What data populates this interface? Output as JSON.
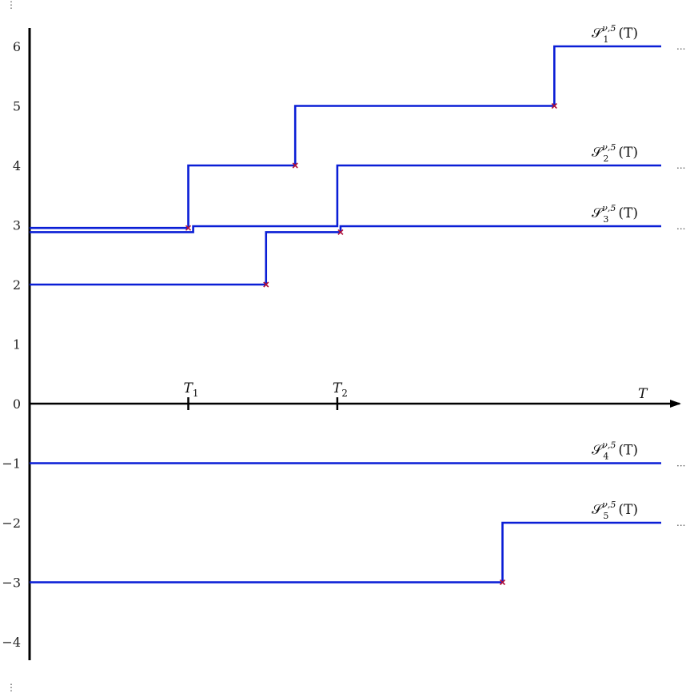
{
  "chart_data": {
    "type": "line",
    "step": true,
    "x_axis_label": "T",
    "y_ticks": [
      "6",
      "5",
      "4",
      "3",
      "2",
      "1",
      "0",
      "−1",
      "−2",
      "−3",
      "−4"
    ],
    "x_markers": [
      {
        "name": "T",
        "sub": "1",
        "x": 4.9
      },
      {
        "name": "T",
        "sub": "2",
        "x": 9.5
      }
    ],
    "xlim": [
      0,
      20
    ],
    "ylim": [
      -4.5,
      6.5
    ],
    "colors": {
      "line": "#0a1ed6",
      "jump_marker": "#b0103a",
      "axis": "#000000"
    },
    "series": [
      {
        "label_main": "𝒮",
        "label_index": "1",
        "label_super": "ν,5",
        "label_arg": "(T)",
        "ellipsis": "...",
        "points": [
          [
            0,
            2.95
          ],
          [
            4.9,
            2.95
          ],
          [
            4.9,
            4
          ],
          [
            8.2,
            4
          ],
          [
            8.2,
            5
          ],
          [
            16.2,
            5
          ],
          [
            16.2,
            6
          ],
          [
            19.5,
            6
          ]
        ],
        "jumps": [
          [
            4.9,
            2.95
          ],
          [
            8.2,
            4
          ],
          [
            16.2,
            5
          ]
        ]
      },
      {
        "label_main": "𝒮",
        "label_index": "2",
        "label_super": "ν,5",
        "label_arg": "(T)",
        "ellipsis": "...",
        "points": [
          [
            0,
            2.88
          ],
          [
            5.05,
            2.88
          ],
          [
            5.05,
            2.98
          ],
          [
            9.5,
            2.98
          ],
          [
            9.5,
            4
          ],
          [
            19.5,
            4
          ]
        ],
        "jumps": []
      },
      {
        "label_main": "𝒮",
        "label_index": "3",
        "label_super": "ν,5",
        "label_arg": "(T)",
        "ellipsis": "...",
        "points": [
          [
            0,
            2
          ],
          [
            7.3,
            2
          ],
          [
            7.3,
            2.88
          ],
          [
            9.6,
            2.88
          ],
          [
            9.6,
            2.98
          ],
          [
            19.5,
            2.98
          ]
        ],
        "jumps": [
          [
            7.3,
            2
          ],
          [
            9.6,
            2.88
          ]
        ]
      },
      {
        "label_main": "𝒮",
        "label_index": "4",
        "label_super": "ν,5",
        "label_arg": "(T)",
        "ellipsis": "...",
        "points": [
          [
            0,
            -1
          ],
          [
            19.5,
            -1
          ]
        ],
        "jumps": []
      },
      {
        "label_main": "𝒮",
        "label_index": "5",
        "label_super": "ν,5",
        "label_arg": "(T)",
        "ellipsis": "...",
        "points": [
          [
            0,
            -3
          ],
          [
            14.6,
            -3
          ],
          [
            14.6,
            -2
          ],
          [
            19.5,
            -2
          ]
        ],
        "jumps": [
          [
            14.6,
            -3
          ]
        ]
      }
    ]
  },
  "y_axis_ellipsis": "⋮"
}
